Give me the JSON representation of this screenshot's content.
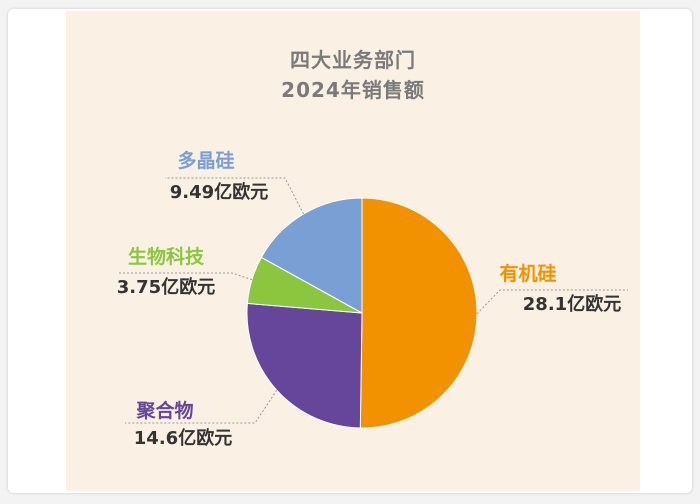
{
  "chart_data": {
    "type": "pie",
    "title": "四大业务部门",
    "subtitle": "2024年销售额",
    "unit": "亿欧元",
    "slices": [
      {
        "key": "silicones",
        "name": "有机硅",
        "value": 28.1,
        "value_label": "28.1亿欧元",
        "color": "#f39200"
      },
      {
        "key": "polymers",
        "name": "聚合物",
        "value": 14.6,
        "value_label": "14.6亿欧元",
        "color": "#65469a"
      },
      {
        "key": "biosolutions",
        "name": "生物科技",
        "value": 3.75,
        "value_label": "3.75亿欧元",
        "color": "#8cc63f"
      },
      {
        "key": "polysilicon",
        "name": "多晶硅",
        "value": 9.49,
        "value_label": "9.49亿欧元",
        "color": "#7a9fd4"
      }
    ],
    "start_angle_deg": 0,
    "direction": "clockwise",
    "legend": "none",
    "label_style": "outside with dotted leader lines"
  },
  "colors": {
    "panel_background": "#faf0e4",
    "title_text": "#7a7a7a",
    "value_text": "#333333"
  }
}
